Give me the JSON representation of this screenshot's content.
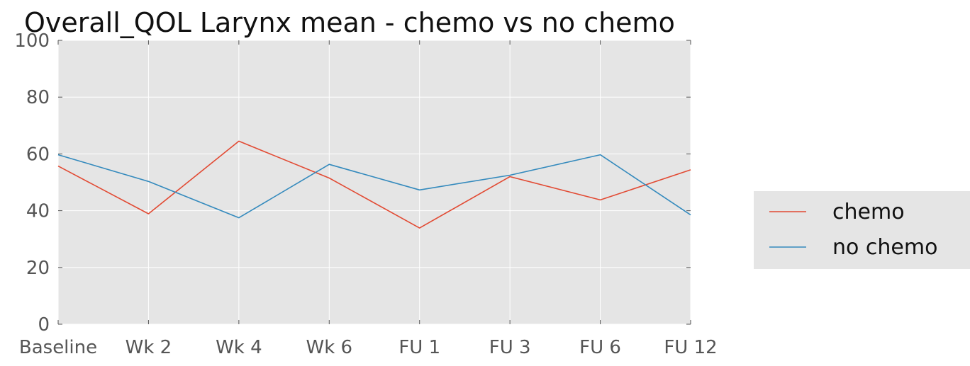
{
  "chart_data": {
    "type": "line",
    "title": "Overall_QOL Larynx mean - chemo vs no chemo",
    "xlabel": "",
    "ylabel": "",
    "categories": [
      "Baseline",
      "Wk 2",
      "Wk 4",
      "Wk 6",
      "FU 1",
      "FU 3",
      "FU 6",
      "FU 12"
    ],
    "yticks": [
      "0",
      "20",
      "40",
      "60",
      "80",
      "100"
    ],
    "ylim": [
      0,
      100
    ],
    "grid": true,
    "legend_position": "right",
    "series": [
      {
        "name": "chemo",
        "color": "#E24A33",
        "values": [
          55.7,
          38.9,
          64.5,
          51.5,
          33.9,
          52.0,
          43.8,
          54.4
        ]
      },
      {
        "name": "no chemo",
        "color": "#348ABD",
        "values": [
          59.7,
          50.3,
          37.5,
          56.3,
          47.3,
          52.5,
          59.7,
          38.5
        ]
      }
    ]
  }
}
